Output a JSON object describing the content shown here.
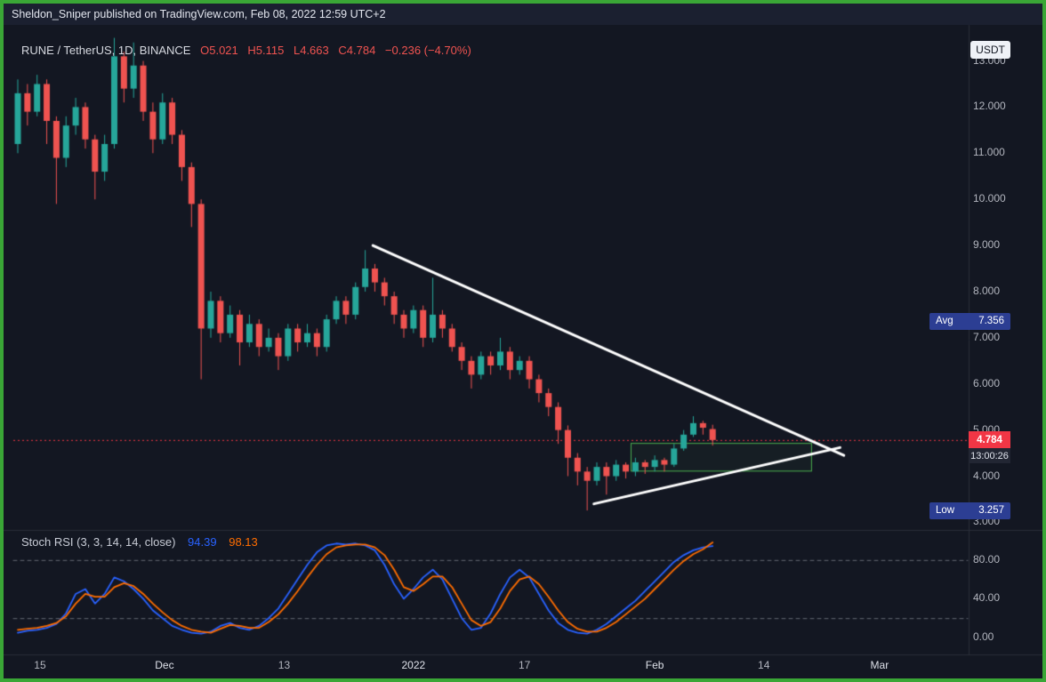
{
  "attribution": {
    "text": "Sheldon_Sniper published on TradingView.com, Feb 08, 2022 12:59 UTC+2"
  },
  "legend": {
    "title": "RUNE / TetherUS, 1D, BINANCE",
    "o": "O5.021",
    "h": "H5.115",
    "l": "L4.663",
    "c": "C4.784",
    "change": "−0.236 (−4.70%)"
  },
  "price_scale": {
    "currency_badge": "USDT",
    "avg_label": "Avg",
    "avg_value": "7.356",
    "low_label": "Low",
    "low_value": "3.257",
    "last_price": "4.784",
    "countdown": "13:00:26"
  },
  "stoch_legend": {
    "title": "Stoch RSI (3, 3, 14, 14, close)",
    "k_value": "94.39",
    "d_value": "98.13"
  },
  "chart_data": {
    "type": "candlestick",
    "symbol": "RUNE / TetherUS",
    "interval": "1D",
    "exchange": "BINANCE",
    "colors": {
      "up": "#26a69a",
      "down": "#ef5350",
      "background": "#131722",
      "grid": "#2a2e39"
    },
    "price_pane": {
      "y_range": [
        2.95,
        13.55
      ],
      "avg_price": 7.356,
      "low_price": 3.257,
      "last_price": 4.784,
      "price_ticks": [
        {
          "label": "13.000",
          "value": 13
        },
        {
          "label": "12.000",
          "value": 12
        },
        {
          "label": "11.000",
          "value": 11
        },
        {
          "label": "10.000",
          "value": 10
        },
        {
          "label": "9.000",
          "value": 9
        },
        {
          "label": "8.000",
          "value": 8
        },
        {
          "label": "7.000",
          "value": 7
        },
        {
          "label": "6.000",
          "value": 6
        },
        {
          "label": "5.000",
          "value": 5
        },
        {
          "label": "4.000",
          "value": 4
        },
        {
          "label": "3.000",
          "value": 3
        }
      ],
      "candles": [
        [
          11.2,
          12.6,
          11.0,
          12.3
        ],
        [
          12.3,
          12.5,
          11.6,
          11.9
        ],
        [
          11.9,
          12.7,
          11.8,
          12.5
        ],
        [
          12.5,
          12.6,
          11.2,
          11.7
        ],
        [
          11.7,
          11.8,
          9.9,
          10.9
        ],
        [
          10.9,
          11.8,
          10.7,
          11.6
        ],
        [
          11.6,
          12.2,
          11.4,
          12.0
        ],
        [
          12.0,
          12.1,
          11.1,
          11.3
        ],
        [
          11.3,
          11.4,
          10.0,
          10.6
        ],
        [
          10.6,
          11.4,
          10.4,
          11.2
        ],
        [
          11.2,
          13.5,
          11.1,
          13.1
        ],
        [
          13.1,
          13.2,
          12.1,
          12.4
        ],
        [
          12.4,
          13.4,
          12.2,
          12.9
        ],
        [
          12.9,
          13.0,
          11.7,
          11.9
        ],
        [
          11.9,
          12.1,
          11.0,
          11.3
        ],
        [
          11.3,
          12.3,
          11.2,
          12.1
        ],
        [
          12.1,
          12.2,
          11.2,
          11.4
        ],
        [
          11.4,
          11.5,
          10.4,
          10.7
        ],
        [
          10.7,
          10.8,
          9.4,
          9.9
        ],
        [
          9.9,
          10.0,
          6.1,
          7.2
        ],
        [
          7.2,
          8.0,
          7.0,
          7.8
        ],
        [
          7.8,
          7.9,
          6.9,
          7.1
        ],
        [
          7.1,
          7.7,
          7.0,
          7.5
        ],
        [
          7.5,
          7.6,
          6.4,
          6.9
        ],
        [
          6.9,
          7.5,
          6.8,
          7.3
        ],
        [
          7.3,
          7.4,
          6.6,
          6.8
        ],
        [
          6.8,
          7.2,
          6.7,
          7.0
        ],
        [
          7.0,
          7.1,
          6.3,
          6.6
        ],
        [
          6.6,
          7.3,
          6.5,
          7.2
        ],
        [
          7.2,
          7.3,
          6.7,
          6.9
        ],
        [
          6.9,
          7.3,
          6.8,
          7.1
        ],
        [
          7.1,
          7.2,
          6.6,
          6.8
        ],
        [
          6.8,
          7.5,
          6.7,
          7.4
        ],
        [
          7.4,
          7.9,
          7.3,
          7.8
        ],
        [
          7.8,
          7.9,
          7.3,
          7.5
        ],
        [
          7.5,
          8.2,
          7.4,
          8.1
        ],
        [
          8.1,
          8.9,
          8.0,
          8.5
        ],
        [
          8.5,
          8.6,
          8.0,
          8.2
        ],
        [
          8.2,
          8.3,
          7.7,
          7.9
        ],
        [
          7.9,
          8.0,
          7.3,
          7.5
        ],
        [
          7.5,
          7.6,
          7.0,
          7.2
        ],
        [
          7.2,
          7.7,
          7.1,
          7.6
        ],
        [
          7.6,
          7.7,
          6.8,
          7.0
        ],
        [
          7.0,
          8.3,
          6.9,
          7.5
        ],
        [
          7.5,
          7.6,
          7.0,
          7.2
        ],
        [
          7.2,
          7.3,
          6.7,
          6.8
        ],
        [
          6.8,
          6.9,
          6.3,
          6.5
        ],
        [
          6.5,
          6.6,
          5.9,
          6.2
        ],
        [
          6.2,
          6.7,
          6.1,
          6.6
        ],
        [
          6.6,
          6.7,
          6.2,
          6.4
        ],
        [
          6.4,
          7.0,
          6.3,
          6.7
        ],
        [
          6.7,
          6.8,
          6.1,
          6.3
        ],
        [
          6.3,
          6.6,
          6.2,
          6.5
        ],
        [
          6.5,
          6.6,
          5.9,
          6.1
        ],
        [
          6.1,
          6.2,
          5.6,
          5.8
        ],
        [
          5.8,
          5.9,
          5.3,
          5.5
        ],
        [
          5.5,
          5.6,
          4.7,
          5.0
        ],
        [
          5.0,
          5.1,
          4.0,
          4.4
        ],
        [
          4.4,
          4.5,
          3.8,
          4.1
        ],
        [
          4.1,
          4.2,
          3.257,
          3.9
        ],
        [
          3.9,
          4.3,
          3.8,
          4.2
        ],
        [
          4.2,
          4.3,
          3.6,
          4.0
        ],
        [
          4.0,
          4.35,
          3.9,
          4.25
        ],
        [
          4.25,
          4.3,
          3.95,
          4.1
        ],
        [
          4.1,
          4.4,
          4.0,
          4.3
        ],
        [
          4.3,
          4.35,
          4.05,
          4.2
        ],
        [
          4.2,
          4.45,
          4.1,
          4.35
        ],
        [
          4.35,
          4.4,
          4.1,
          4.25
        ],
        [
          4.25,
          4.7,
          4.2,
          4.6
        ],
        [
          4.6,
          5.0,
          4.55,
          4.9
        ],
        [
          4.9,
          5.3,
          4.85,
          5.15
        ],
        [
          5.15,
          5.2,
          4.9,
          5.05
        ],
        [
          5.021,
          5.115,
          4.663,
          4.784
        ]
      ]
    },
    "time_ticks": [
      {
        "label": "15",
        "index": 2.3,
        "major": false
      },
      {
        "label": "Dec",
        "index": 15.2,
        "major": true
      },
      {
        "label": "13",
        "index": 27.6,
        "major": false
      },
      {
        "label": "2022",
        "index": 41.0,
        "major": true
      },
      {
        "label": "17",
        "index": 52.5,
        "major": false
      },
      {
        "label": "Feb",
        "index": 66.0,
        "major": true
      },
      {
        "label": "14",
        "index": 77.3,
        "major": false
      },
      {
        "label": "Mar",
        "index": 89.3,
        "major": true
      }
    ],
    "annotations": {
      "trendlines": [
        {
          "from": {
            "index": 36.8,
            "price": 9.0
          },
          "to": {
            "index": 85.6,
            "price": 4.45
          },
          "color": "#ffffff",
          "width": 3
        },
        {
          "from": {
            "index": 59.7,
            "price": 3.4
          },
          "to": {
            "index": 85.2,
            "price": 4.62
          },
          "color": "#ffffff",
          "width": 3
        }
      ],
      "box": {
        "from_index": 63.5,
        "to_index": 82.2,
        "top_price": 4.72,
        "bottom_price": 4.12,
        "color": "#4caf50"
      },
      "price_line": {
        "price": 4.784,
        "color": "#f23645",
        "style": "dotted"
      }
    },
    "stoch_pane": {
      "y_range": [
        0,
        100
      ],
      "bands": [
        80,
        20
      ],
      "ticks": [
        {
          "label": "80.00",
          "value": 80
        },
        {
          "label": "40.00",
          "value": 40
        },
        {
          "label": "0.00",
          "value": 0
        }
      ],
      "series": [
        {
          "name": "%K",
          "color": "#2962ff",
          "values": [
            5,
            7,
            8,
            10,
            14,
            25,
            45,
            50,
            35,
            45,
            62,
            58,
            50,
            40,
            28,
            20,
            12,
            8,
            5,
            4,
            6,
            12,
            15,
            10,
            8,
            12,
            20,
            30,
            45,
            60,
            75,
            88,
            95,
            97,
            96,
            97,
            95,
            90,
            75,
            55,
            40,
            50,
            62,
            70,
            60,
            40,
            20,
            8,
            10,
            25,
            45,
            62,
            70,
            62,
            45,
            28,
            15,
            8,
            5,
            4,
            8,
            14,
            22,
            30,
            38,
            48,
            58,
            68,
            78,
            85,
            90,
            93,
            94.39
          ]
        },
        {
          "name": "%D",
          "color": "#ff6d00",
          "values": [
            8,
            9,
            10,
            12,
            15,
            22,
            35,
            45,
            42,
            42,
            52,
            56,
            53,
            45,
            35,
            26,
            18,
            12,
            8,
            6,
            5,
            9,
            13,
            12,
            10,
            10,
            16,
            24,
            35,
            48,
            62,
            75,
            86,
            93,
            95,
            96,
            96,
            93,
            85,
            70,
            52,
            48,
            55,
            63,
            63,
            52,
            35,
            18,
            12,
            16,
            30,
            48,
            60,
            63,
            55,
            42,
            28,
            16,
            9,
            6,
            6,
            10,
            16,
            24,
            32,
            40,
            50,
            60,
            70,
            79,
            86,
            91,
            98.13
          ]
        }
      ]
    }
  }
}
